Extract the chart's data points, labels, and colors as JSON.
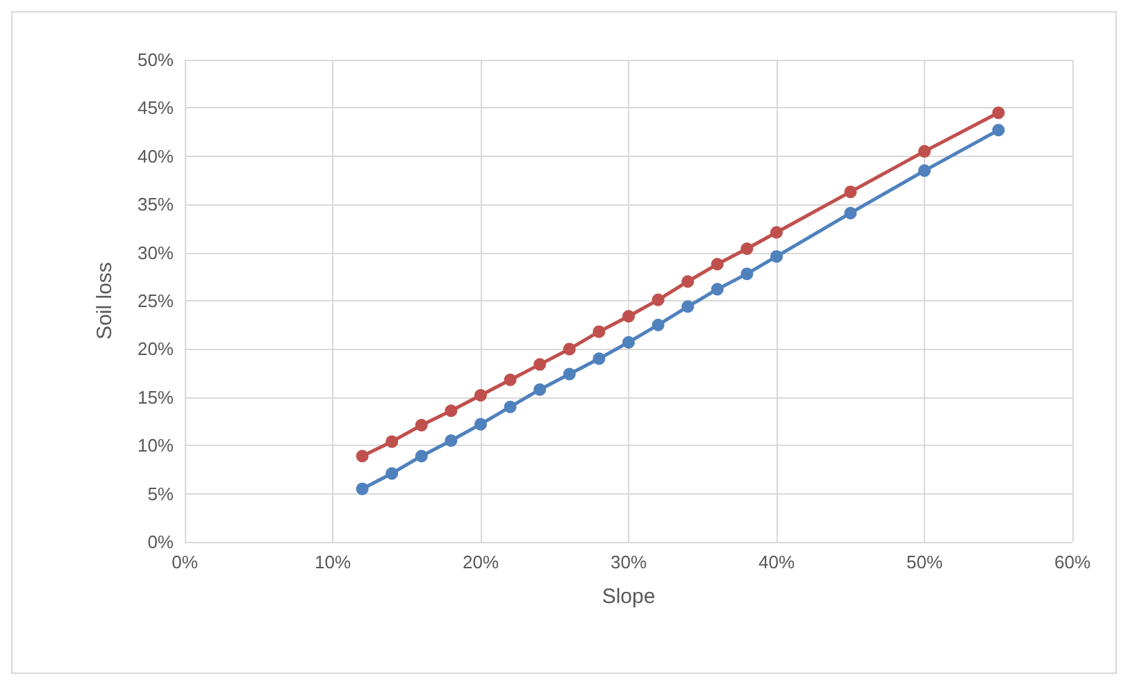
{
  "chart_data": {
    "type": "line",
    "xlabel": "Slope",
    "ylabel": "Soil loss",
    "x": [
      12,
      14,
      16,
      18,
      20,
      22,
      24,
      26,
      28,
      30,
      32,
      34,
      36,
      38,
      40,
      45,
      50,
      55
    ],
    "series": [
      {
        "color": "#c0504d",
        "values": [
          8.9,
          10.4,
          12.1,
          13.6,
          15.2,
          16.8,
          18.4,
          20.0,
          21.8,
          23.4,
          25.1,
          27.0,
          28.8,
          30.4,
          32.1,
          36.3,
          40.5,
          44.5
        ]
      },
      {
        "color": "#4f81bd",
        "values": [
          5.5,
          7.1,
          8.9,
          10.5,
          12.2,
          14.0,
          15.8,
          17.4,
          19.0,
          20.7,
          22.5,
          24.4,
          26.2,
          27.8,
          29.6,
          34.1,
          38.5,
          42.7
        ]
      }
    ],
    "xlim": [
      0,
      60
    ],
    "xticks": [
      {
        "value": 0,
        "label": "0%"
      },
      {
        "value": 10,
        "label": "10%"
      },
      {
        "value": 20,
        "label": "20%"
      },
      {
        "value": 30,
        "label": "30%"
      },
      {
        "value": 40,
        "label": "40%"
      },
      {
        "value": 50,
        "label": "50%"
      },
      {
        "value": 60,
        "label": "60%"
      }
    ],
    "ylim": [
      0,
      50
    ],
    "yticks": [
      {
        "value": 0,
        "label": "0%"
      },
      {
        "value": 5,
        "label": "5%"
      },
      {
        "value": 10,
        "label": "10%"
      },
      {
        "value": 15,
        "label": "15%"
      },
      {
        "value": 20,
        "label": "20%"
      },
      {
        "value": 25,
        "label": "25%"
      },
      {
        "value": 30,
        "label": "30%"
      },
      {
        "value": 35,
        "label": "35%"
      },
      {
        "value": 40,
        "label": "40%"
      },
      {
        "value": 45,
        "label": "45%"
      },
      {
        "value": 50,
        "label": "50%"
      }
    ],
    "grid": true,
    "marker": "circle",
    "line_style": "solid"
  }
}
